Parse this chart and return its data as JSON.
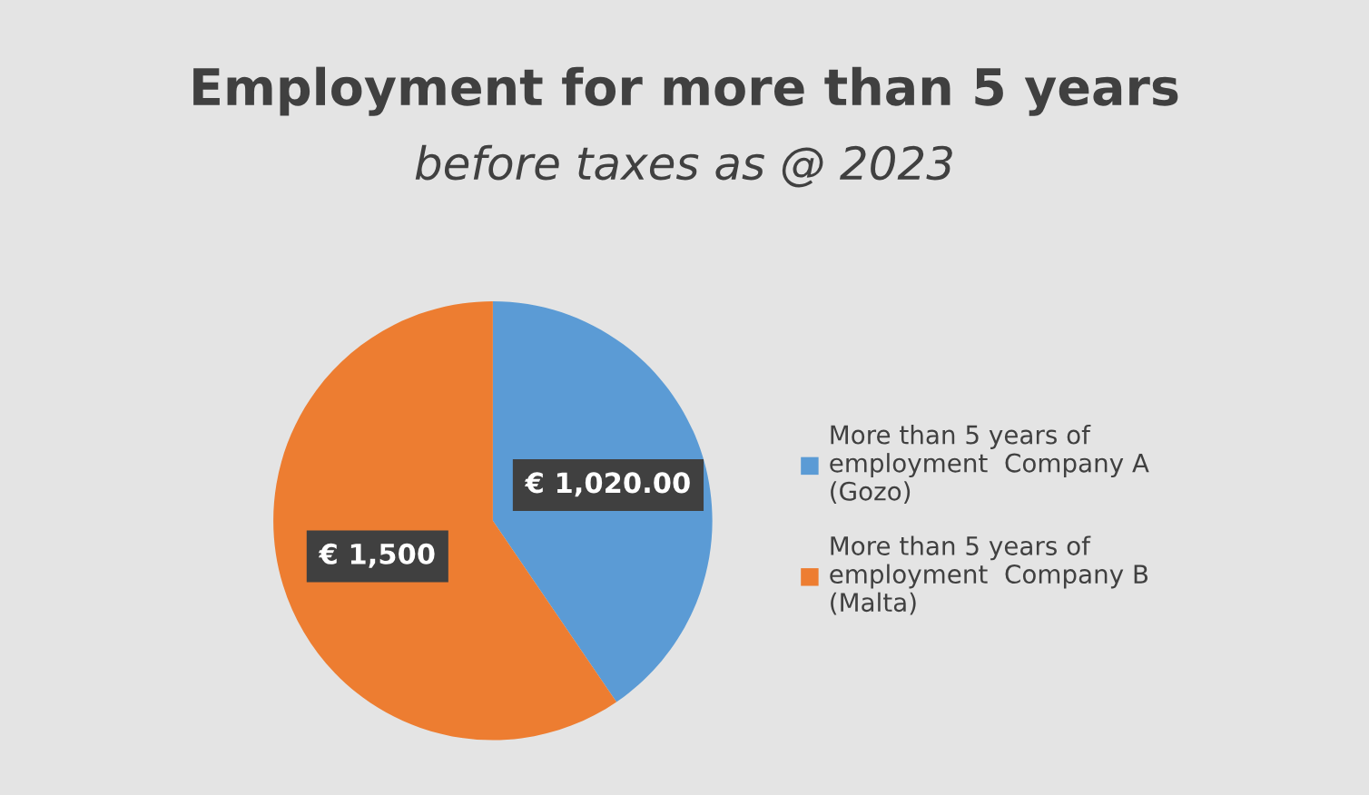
{
  "chart_data": {
    "type": "pie",
    "title": "Employment for more than 5 years",
    "subtitle": "before taxes as @ 2023",
    "categories": [
      "More than 5 years of\nemployment  Company A\n(Gozo)",
      "More than 5 years of\nemployment  Company B\n(Malta)"
    ],
    "values": [
      1020,
      1500
    ],
    "value_labels": [
      "€ 1,020.00",
      "€ 1,500"
    ],
    "colors": [
      "#5b9bd5",
      "#ed7d31"
    ],
    "legend": "right"
  }
}
